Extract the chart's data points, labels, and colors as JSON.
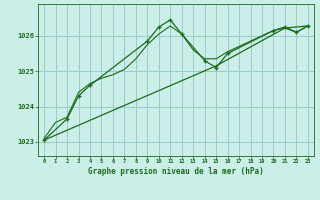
{
  "bg_color": "#cceee8",
  "grid_color": "#99cccc",
  "line_color": "#1a6b1a",
  "title": "Graphe pression niveau de la mer (hPa)",
  "xlim": [
    -0.5,
    23.5
  ],
  "ylim": [
    1022.6,
    1026.9
  ],
  "yticks": [
    1023,
    1024,
    1025,
    1026
  ],
  "xticks": [
    0,
    1,
    2,
    3,
    4,
    5,
    6,
    7,
    8,
    9,
    10,
    11,
    12,
    13,
    14,
    15,
    16,
    17,
    18,
    19,
    20,
    21,
    22,
    23
  ],
  "series1_x": [
    0,
    1,
    2,
    3,
    4,
    5,
    6,
    7,
    8,
    9,
    10,
    11,
    12,
    13,
    14,
    15,
    16,
    17,
    18,
    19,
    20,
    21,
    22,
    23
  ],
  "series1_y": [
    1023.1,
    1023.55,
    1023.7,
    1024.4,
    1024.65,
    1024.8,
    1024.9,
    1025.05,
    1025.35,
    1025.75,
    1026.05,
    1026.28,
    1026.05,
    1025.6,
    1025.35,
    1025.35,
    1025.55,
    1025.7,
    1025.85,
    1026.0,
    1026.15,
    1026.22,
    1026.1,
    1026.28
  ],
  "series2_x": [
    0,
    2,
    3,
    4,
    9,
    10,
    11,
    12,
    14,
    15,
    16,
    20,
    21,
    22,
    23
  ],
  "series2_y": [
    1023.05,
    1023.65,
    1024.3,
    1024.6,
    1025.85,
    1026.25,
    1026.45,
    1026.05,
    1025.3,
    1025.1,
    1025.5,
    1026.15,
    1026.25,
    1026.1,
    1026.28
  ],
  "series3_x": [
    0,
    15,
    21,
    23
  ],
  "series3_y": [
    1023.05,
    1025.15,
    1026.22,
    1026.28
  ]
}
